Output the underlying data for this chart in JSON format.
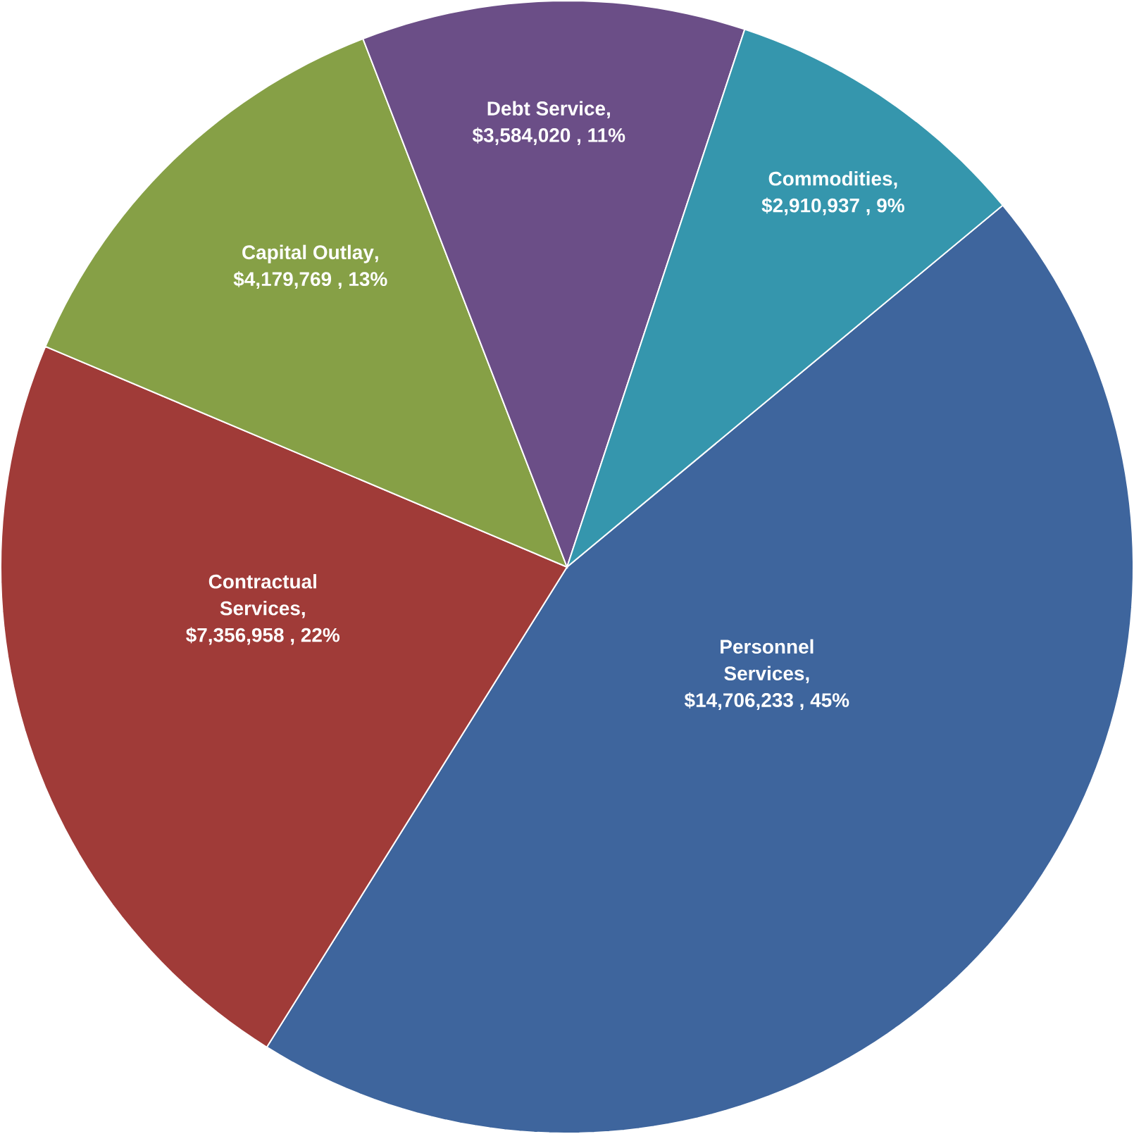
{
  "chart_data": {
    "type": "pie",
    "categories": [
      "Personnel Services",
      "Contractual Services",
      "Capital Outlay",
      "Debt Service",
      "Commodities"
    ],
    "values": [
      14706233,
      7356958,
      4179769,
      3584020,
      2910937
    ],
    "value_labels": [
      ", $14,706,233 , 45%",
      ", $7,356,958 , 22%",
      ", $4,179,769 , 13%",
      ", $3,584,020 , 11%",
      ", $2,910,937 , 9%"
    ],
    "colors": [
      "#3e659d",
      "#a03b38",
      "#86a046",
      "#6b4e87",
      "#3596ad"
    ]
  }
}
